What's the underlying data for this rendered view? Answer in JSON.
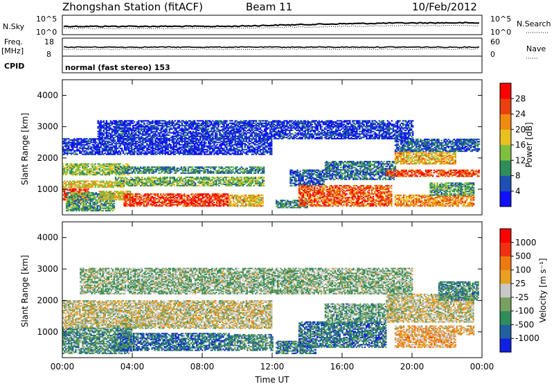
{
  "header": {
    "title": "Zhongshan Station (fitACF)",
    "beam": "Beam 11",
    "date": "10/Feb/2012"
  },
  "top_panels": {
    "nsky_label": "N.Sky",
    "nsearch_label": "N.Search",
    "noise_left_ticks": [
      "10^5",
      "10^0"
    ],
    "noise_right_ticks": [
      "10^5",
      "10^0"
    ],
    "freq_label": "Freq.",
    "freq_unit": "[MHz]",
    "freq_ticks": [
      "18",
      "8"
    ],
    "nave_label": "Nave",
    "nave_ticks": [
      "60",
      "0"
    ],
    "cpid_label": "CPID",
    "cpid_text": "normal (fast stereo) 153"
  },
  "chart_data": [
    {
      "type": "heatmap",
      "name": "power",
      "ylabel": "Slant Range [km]",
      "xlabel": "",
      "ylim": [
        180,
        4500
      ],
      "yticks": [
        "1000",
        "2000",
        "3000",
        "4000"
      ],
      "xlim": [
        0,
        24
      ],
      "xticks": [
        "00:00",
        "04:00",
        "08:00",
        "12:00",
        "16:00",
        "20:00",
        "00:00"
      ],
      "colorbar": {
        "label": "Power [dB]",
        "ticks": [
          "4",
          "8",
          "12",
          "16",
          "20",
          "24",
          "28"
        ],
        "range": [
          0,
          30
        ]
      },
      "regions": [
        {
          "t0": 0.0,
          "t1": 3.8,
          "r0": 1450,
          "r1": 1800,
          "level": 0.45
        },
        {
          "t0": 0.0,
          "t1": 3.5,
          "r0": 1050,
          "r1": 1250,
          "level": 0.55
        },
        {
          "t0": 0.0,
          "t1": 1.5,
          "r0": 650,
          "r1": 1000,
          "level": 0.82
        },
        {
          "t0": 0.2,
          "t1": 3.0,
          "r0": 300,
          "r1": 900,
          "level": 0.35
        },
        {
          "t0": 3.0,
          "t1": 11.5,
          "r0": 1500,
          "r1": 1700,
          "level": 0.3
        },
        {
          "t0": 3.0,
          "t1": 11.5,
          "r0": 1100,
          "r1": 1400,
          "level": 0.4
        },
        {
          "t0": 2.0,
          "t1": 4.0,
          "r0": 650,
          "r1": 950,
          "level": 0.55
        },
        {
          "t0": 3.5,
          "t1": 9.5,
          "r0": 450,
          "r1": 850,
          "level": 0.85
        },
        {
          "t0": 9.5,
          "t1": 11.5,
          "r0": 450,
          "r1": 800,
          "level": 0.6
        },
        {
          "t0": 0.0,
          "t1": 12.0,
          "r0": 2100,
          "r1": 2600,
          "level": 0.1
        },
        {
          "t0": 12.2,
          "t1": 14.0,
          "r0": 400,
          "r1": 650,
          "level": 0.3
        },
        {
          "t0": 13.0,
          "t1": 15.0,
          "r0": 1100,
          "r1": 1600,
          "level": 0.2
        },
        {
          "t0": 13.5,
          "t1": 18.8,
          "r0": 450,
          "r1": 1100,
          "level": 0.78
        },
        {
          "t0": 15.0,
          "t1": 19.0,
          "r0": 1300,
          "r1": 1900,
          "level": 0.25
        },
        {
          "t0": 18.5,
          "t1": 23.8,
          "r0": 1400,
          "r1": 1600,
          "level": 0.82
        },
        {
          "t0": 19.0,
          "t1": 22.5,
          "r0": 1800,
          "r1": 2200,
          "level": 0.62
        },
        {
          "t0": 19.0,
          "t1": 23.8,
          "r0": 2200,
          "r1": 2600,
          "level": 0.2
        },
        {
          "t0": 19.0,
          "t1": 23.5,
          "r0": 450,
          "r1": 800,
          "level": 0.68
        },
        {
          "t0": 21.0,
          "t1": 23.5,
          "r0": 800,
          "r1": 1200,
          "level": 0.35
        },
        {
          "t0": 2.0,
          "t1": 20.0,
          "r0": 2600,
          "r1": 3200,
          "level": 0.12
        }
      ]
    },
    {
      "type": "heatmap",
      "name": "velocity",
      "ylabel": "Slant Range [km]",
      "xlabel": "Time UT",
      "ylim": [
        180,
        4500
      ],
      "yticks": [
        "1000",
        "2000",
        "3000",
        "4000"
      ],
      "xlim": [
        0,
        24
      ],
      "xticks": [
        "00:00",
        "04:00",
        "08:00",
        "12:00",
        "16:00",
        "20:00",
        "00:00"
      ],
      "colorbar": {
        "label": "Velocity [m s⁻¹]",
        "ticks": [
          "1000",
          "500",
          "100",
          "25",
          "-25",
          "-100",
          "-500",
          "-1000"
        ]
      },
      "regions": [
        {
          "t0": 0.0,
          "t1": 12.0,
          "r0": 1400,
          "r1": 2000,
          "level": 0.5
        },
        {
          "t0": 0.0,
          "t1": 12.0,
          "r0": 1100,
          "r1": 1400,
          "level": 0.5
        },
        {
          "t0": 0.0,
          "t1": 4.0,
          "r0": 300,
          "r1": 1100,
          "level": 0.3
        },
        {
          "t0": 3.0,
          "t1": 9.5,
          "r0": 400,
          "r1": 950,
          "level": 0.2
        },
        {
          "t0": 9.5,
          "t1": 12.0,
          "r0": 400,
          "r1": 900,
          "level": 0.28
        },
        {
          "t0": 12.2,
          "t1": 14.5,
          "r0": 300,
          "r1": 700,
          "level": 0.25
        },
        {
          "t0": 13.5,
          "t1": 18.5,
          "r0": 500,
          "r1": 1300,
          "level": 0.22
        },
        {
          "t0": 15.0,
          "t1": 18.5,
          "r0": 1300,
          "r1": 1900,
          "level": 0.35
        },
        {
          "t0": 18.5,
          "t1": 23.5,
          "r0": 1300,
          "r1": 2200,
          "level": 0.5
        },
        {
          "t0": 19.0,
          "t1": 22.5,
          "r0": 500,
          "r1": 900,
          "level": 0.62
        },
        {
          "t0": 19.0,
          "t1": 23.5,
          "r0": 900,
          "r1": 1200,
          "level": 0.6
        },
        {
          "t0": 21.5,
          "t1": 23.8,
          "r0": 2000,
          "r1": 2600,
          "level": 0.28
        },
        {
          "t0": 1.0,
          "t1": 20.0,
          "r0": 2200,
          "r1": 3000,
          "level": 0.4
        }
      ]
    }
  ],
  "colors": {
    "power_scale": [
      "#1010ff",
      "#1e4fb4",
      "#2e8d5a",
      "#7fbf40",
      "#e8c020",
      "#f08a10",
      "#e84010",
      "#ff0000"
    ],
    "velocity_scale": [
      "#1020e0",
      "#2060a0",
      "#2e8d5a",
      "#7aa060",
      "#c8c8c8",
      "#e8a020",
      "#f07810",
      "#f03010",
      "#ff0000"
    ]
  }
}
